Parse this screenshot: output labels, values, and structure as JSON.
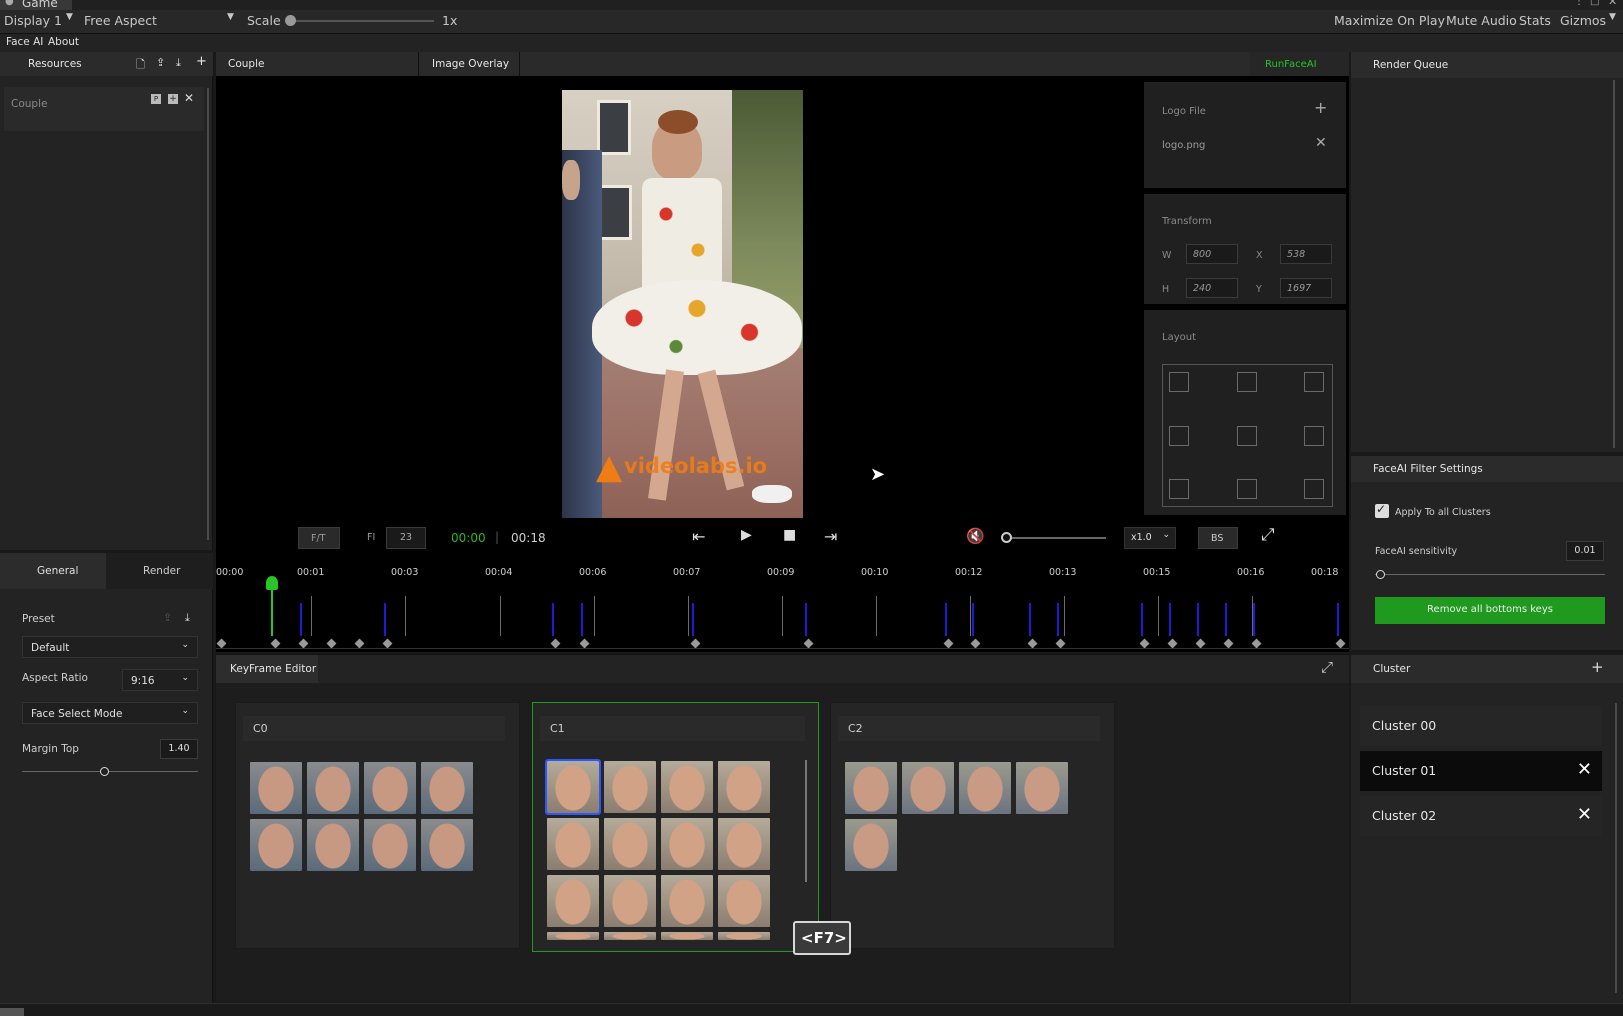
{
  "unity_bar": {
    "window_title": "Game",
    "display": "Display 1",
    "aspect": "Free Aspect",
    "scale_label": "Scale",
    "scale_value": "1x",
    "maximize_on_play": "Maximize On Play",
    "mute_audio": "Mute Audio",
    "stats": "Stats",
    "gizmos": "Gizmos"
  },
  "menu": {
    "faceai": "Face AI",
    "about": "About"
  },
  "resources": {
    "title": "Resources",
    "item": "Couple"
  },
  "tabs": {
    "couple": "Couple",
    "image_overlay": "Image Overlay",
    "run_faceai": "RunFaceAI"
  },
  "overlay": {
    "logo_file_label": "Logo File",
    "logo_name": "logo.png",
    "transform_label": "Transform",
    "w_label": "W",
    "w_value": "800",
    "x_label": "X",
    "x_value": "538",
    "h_label": "H",
    "h_value": "240",
    "y_label": "Y",
    "y_value": "1697",
    "layout_label": "Layout"
  },
  "video": {
    "watermark": "videolabs.io"
  },
  "transport": {
    "ft_button": "F/T",
    "fi_label": "FI",
    "fi_value": "23",
    "current_time": "00:00",
    "separator": "|",
    "total_time": "00:18",
    "speed": "x1.0",
    "bs_button": "BS"
  },
  "timeline": {
    "ticks": [
      "00:00",
      "00:01",
      "00:03",
      "00:04",
      "00:06",
      "00:07",
      "00:09",
      "00:10",
      "00:12",
      "00:13",
      "00:15",
      "00:16",
      "00:18"
    ]
  },
  "settings_tabs": {
    "general": "General",
    "render": "Render"
  },
  "general": {
    "preset_label": "Preset",
    "preset_value": "Default",
    "aspect_ratio_label": "Aspect Ratio",
    "aspect_ratio_value": "9:16",
    "face_select_mode": "Face Select Mode",
    "margin_top_label": "Margin Top",
    "margin_top_value": "1.40"
  },
  "keyframe_editor": {
    "title": "KeyFrame Editor",
    "groups": [
      "C0",
      "C1",
      "C2"
    ],
    "shortcut": "<F7>"
  },
  "render_queue": {
    "title": "Render Queue"
  },
  "filter": {
    "title": "FaceAI Filter Settings",
    "apply_all": "Apply To all Clusters",
    "sensitivity_label": "FaceAI sensitivity",
    "sensitivity_value": "0.01",
    "remove_button": "Remove all bottoms keys"
  },
  "cluster": {
    "title": "Cluster",
    "items": [
      "Cluster 00",
      "Cluster 01",
      "Cluster 02"
    ]
  },
  "colors": {
    "accent_green": "#1f9a1f",
    "run_green": "#27c427",
    "timeline_blue": "#1b1bd8",
    "selected_blue": "#2a57ff"
  }
}
